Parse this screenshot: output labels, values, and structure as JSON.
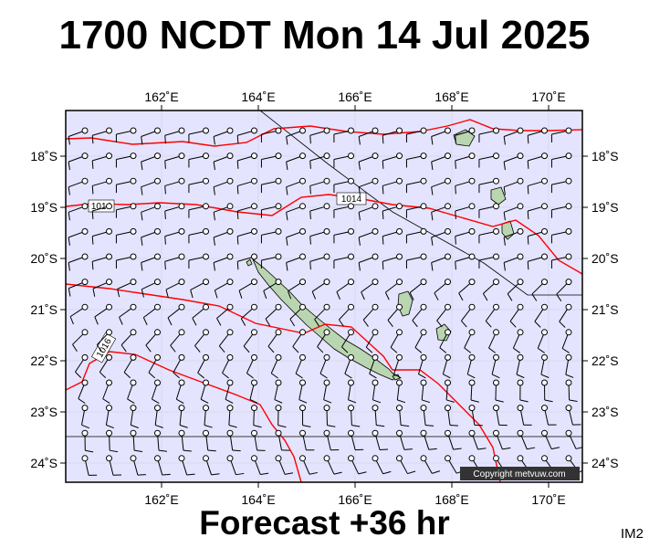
{
  "title": "1700 NCDT Mon 14 Jul 2025",
  "subtitle": "Forecast +36 hr",
  "corner_tag": "IM2",
  "copyright": "Copyright metvuw.com",
  "colors": {
    "ocean": "#e4e4ff",
    "isobar": "#ff0000",
    "barb": "#000000",
    "land": "#b9d6b0"
  },
  "map": {
    "lon_ticks": [
      "162˚E",
      "164˚E",
      "166˚E",
      "168˚E",
      "170˚E"
    ],
    "lat_ticks": [
      "18˚S",
      "19˚S",
      "20˚S",
      "21˚S",
      "22˚S",
      "23˚S",
      "24˚S"
    ],
    "isobar_labels": [
      "1014",
      "1014",
      "1016"
    ]
  }
}
